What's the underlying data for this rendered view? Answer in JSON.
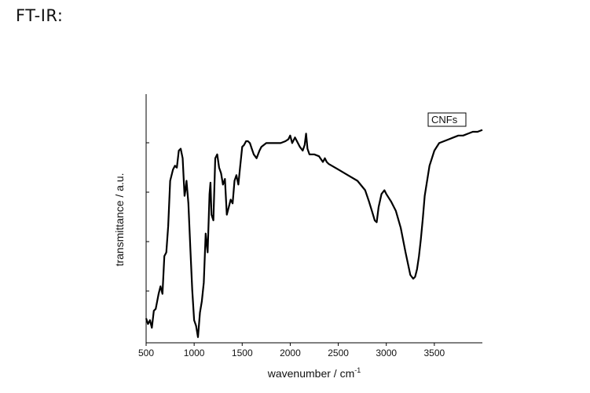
{
  "page": {
    "heading": "FT-IR:"
  },
  "chart_data": {
    "type": "line",
    "xlabel": "wavenumber / cm",
    "xlabel_superscript": "-1",
    "ylabel": "transmittance / a.u.",
    "xlim": [
      500,
      4000
    ],
    "x_ticks": [
      500,
      1000,
      1500,
      2000,
      2500,
      3000,
      3500
    ],
    "y_ticks_labeled": false,
    "grid": false,
    "legend_placement": "top-right",
    "legend_box": true,
    "colors": {
      "line": "#000000",
      "axis": "#000000",
      "background": "#ffffff"
    },
    "series": [
      {
        "name": "CNFs",
        "x": [
          500,
          520,
          540,
          560,
          580,
          600,
          630,
          650,
          670,
          690,
          710,
          730,
          750,
          780,
          800,
          820,
          840,
          860,
          880,
          900,
          910,
          920,
          940,
          960,
          980,
          1000,
          1020,
          1040,
          1060,
          1080,
          1100,
          1120,
          1140,
          1160,
          1170,
          1180,
          1200,
          1220,
          1240,
          1260,
          1280,
          1300,
          1320,
          1340,
          1360,
          1380,
          1400,
          1420,
          1440,
          1460,
          1480,
          1500,
          1520,
          1540,
          1560,
          1580,
          1600,
          1620,
          1650,
          1680,
          1700,
          1750,
          1800,
          1850,
          1900,
          1950,
          1980,
          2000,
          2020,
          2050,
          2080,
          2100,
          2130,
          2150,
          2165,
          2180,
          2200,
          2250,
          2300,
          2340,
          2360,
          2380,
          2400,
          2500,
          2600,
          2700,
          2780,
          2820,
          2850,
          2880,
          2900,
          2920,
          2950,
          2980,
          3000,
          3050,
          3100,
          3150,
          3200,
          3250,
          3280,
          3300,
          3320,
          3340,
          3360,
          3380,
          3400,
          3450,
          3500,
          3550,
          3600,
          3650,
          3700,
          3750,
          3800,
          3850,
          3900,
          3950,
          4000
        ],
        "y": [
          1.3,
          1.0,
          1.2,
          0.8,
          1.7,
          1.8,
          2.6,
          3.0,
          2.6,
          4.6,
          4.8,
          6.2,
          8.6,
          9.2,
          9.4,
          9.3,
          10.2,
          10.3,
          9.8,
          7.8,
          8.1,
          8.6,
          7.4,
          5.0,
          2.8,
          1.2,
          0.9,
          0.3,
          1.6,
          2.2,
          3.2,
          5.8,
          4.8,
          7.9,
          8.5,
          6.8,
          6.5,
          9.8,
          10.0,
          9.3,
          9.0,
          8.4,
          8.7,
          6.8,
          7.2,
          7.6,
          7.4,
          8.6,
          8.9,
          8.4,
          9.4,
          10.4,
          10.5,
          10.7,
          10.7,
          10.6,
          10.3,
          10.0,
          9.8,
          10.2,
          10.4,
          10.6,
          10.6,
          10.6,
          10.6,
          10.7,
          10.8,
          11.0,
          10.6,
          10.9,
          10.6,
          10.4,
          10.2,
          10.5,
          11.1,
          10.3,
          10.0,
          10.0,
          9.9,
          9.6,
          9.8,
          9.6,
          9.5,
          9.2,
          8.9,
          8.6,
          8.1,
          7.5,
          7.0,
          6.5,
          6.4,
          7.2,
          7.9,
          8.1,
          7.9,
          7.5,
          7.0,
          6.1,
          4.8,
          3.6,
          3.4,
          3.5,
          3.9,
          4.6,
          5.5,
          6.6,
          7.8,
          9.4,
          10.2,
          10.6,
          10.7,
          10.8,
          10.9,
          11.0,
          11.0,
          11.1,
          11.2,
          11.2,
          11.3
        ]
      }
    ]
  }
}
